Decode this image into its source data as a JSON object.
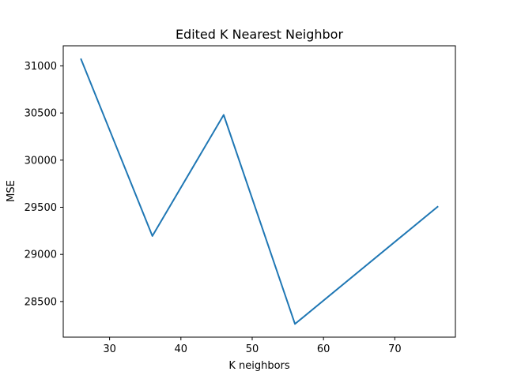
{
  "chart_data": {
    "type": "line",
    "title": "Edited K Nearest Neighbor",
    "xlabel": "K neighbors",
    "ylabel": "MSE",
    "xlim": [
      23.5,
      78.5
    ],
    "ylim": [
      28122,
      31213
    ],
    "xticks": [
      30,
      40,
      50,
      60,
      70
    ],
    "yticks": [
      28500,
      29000,
      29500,
      30000,
      30500,
      31000
    ],
    "grid": false,
    "series": [
      {
        "color": "#1f77b4",
        "x": [
          26,
          36,
          46,
          56,
          76
        ],
        "y": [
          31070,
          29195,
          30480,
          28262,
          29505
        ]
      }
    ]
  }
}
